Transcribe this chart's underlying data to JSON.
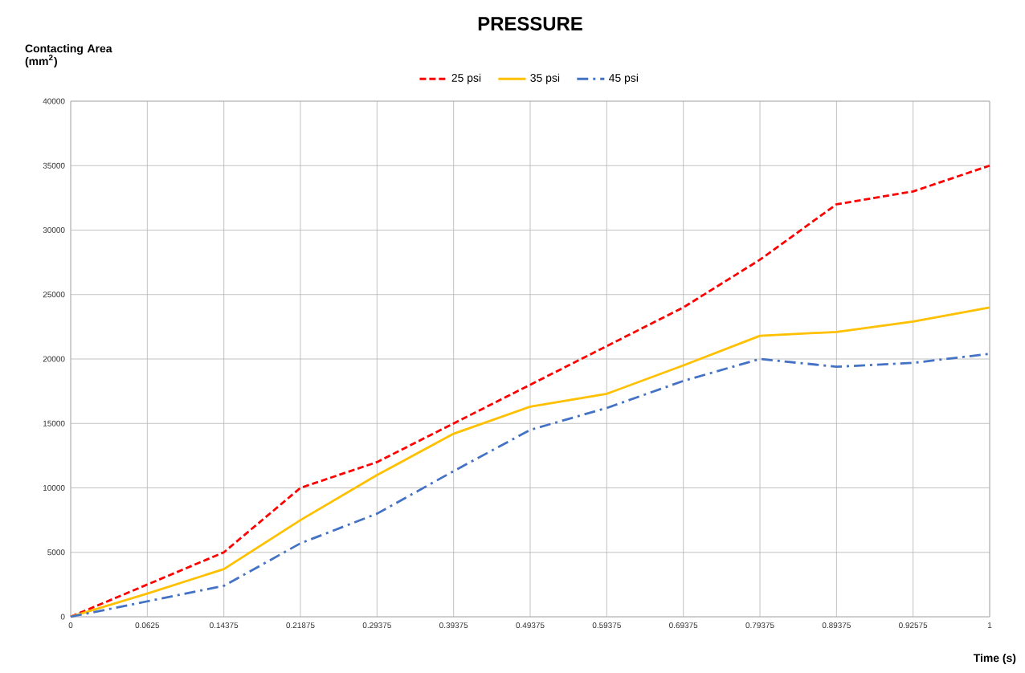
{
  "chart_data": {
    "type": "line",
    "title": "PRESSURE",
    "xlabel": "Time (s)",
    "ylabel": "Contacting Area (mm$^{2}$)",
    "categories": [
      "0",
      "0.0625",
      "0.14375",
      "0.21875",
      "0.29375",
      "0.39375",
      "0.49375",
      "0.59375",
      "0.69375",
      "0.79375",
      "0.89375",
      "0.92575",
      "1"
    ],
    "series": [
      {
        "name": "25 psi",
        "color": "#ff0000",
        "line_style": "dashed",
        "values": [
          0,
          2500,
          5000,
          10000,
          12000,
          15000,
          18000,
          21000,
          24000,
          27700,
          32000,
          33000,
          35000
        ]
      },
      {
        "name": "35 psi",
        "color": "#ffc000",
        "line_style": "solid",
        "values": [
          0,
          1800,
          3700,
          7500,
          11000,
          14200,
          16300,
          17300,
          19500,
          21800,
          22100,
          22900,
          24000
        ]
      },
      {
        "name": "45 psi",
        "color": "#4472c4",
        "line_style": "dashdot",
        "values": [
          0,
          1200,
          2400,
          5700,
          8000,
          11300,
          14500,
          16200,
          18300,
          20000,
          19400,
          19700,
          20400
        ]
      }
    ],
    "ylim": [
      0,
      40000
    ],
    "yticks": [
      0,
      5000,
      10000,
      15000,
      20000,
      25000,
      30000,
      35000,
      40000
    ],
    "grid": true,
    "legend": "top",
    "marker": "none"
  }
}
